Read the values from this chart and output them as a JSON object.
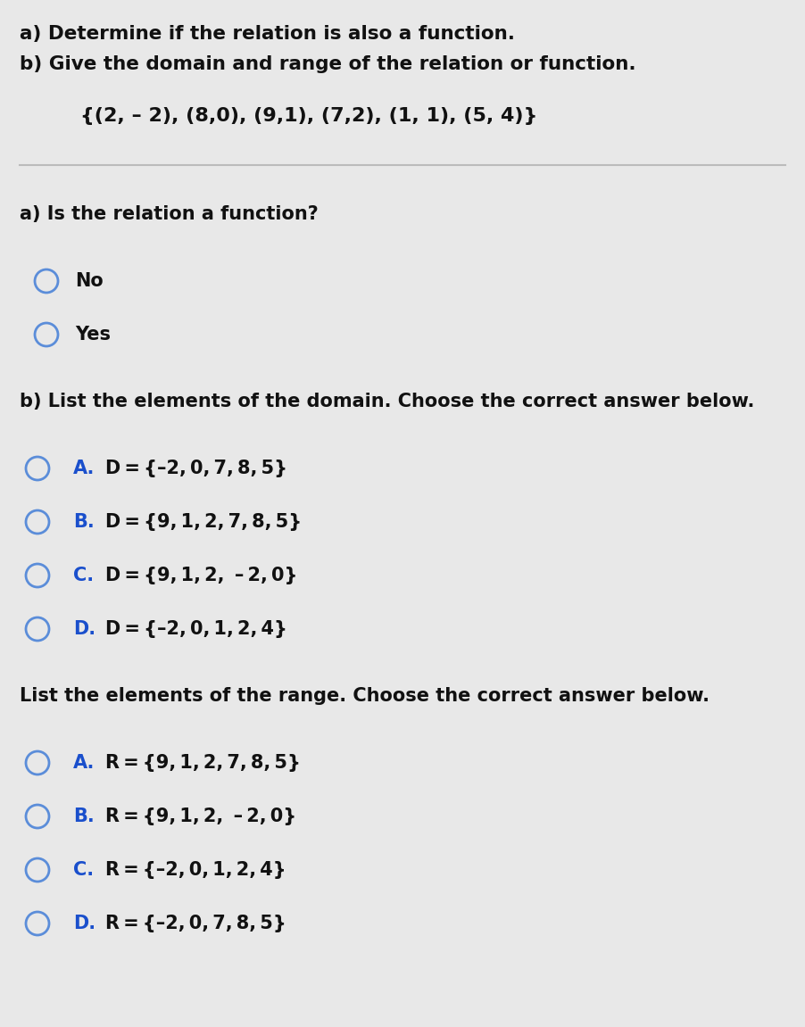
{
  "bg_color": "#e8e8e8",
  "title_line1": "a) Determine if the relation is also a function.",
  "title_line2": "b) Give the domain and range of the relation or function.",
  "set_notation": "{(2, – 2), (8,0), (9,1), (7,2), (1, 1), (5, 4)}",
  "section_a_label": "a) Is the relation a function?",
  "radio_a_options": [
    "No",
    "Yes"
  ],
  "section_b_domain_label": "b) List the elements of the domain. Choose the correct answer below.",
  "domain_options": [
    [
      "A.",
      "D = {–2, 0, 7, 8, 5}"
    ],
    [
      "B.",
      "D = {9, 1, 2, 7, 8, 5}"
    ],
    [
      "C.",
      "D = {9, 1, 2,  – 2, 0}"
    ],
    [
      "D.",
      "D = {–2, 0, 1, 2, 4}"
    ]
  ],
  "section_b_range_label": "List the elements of the range. Choose the correct answer below.",
  "range_options": [
    [
      "A.",
      "R = {9, 1, 2, 7, 8, 5}"
    ],
    [
      "B.",
      "R = {9, 1, 2,  – 2, 0}"
    ],
    [
      "C.",
      "R = {–2, 0, 1, 2, 4}"
    ],
    [
      "D.",
      "R = {–2, 0, 7, 8, 5}"
    ]
  ],
  "circle_color": "#5b8dd9",
  "text_color_black": "#111111",
  "text_color_blue": "#1a4fcc",
  "line_color": "#bbbbbb",
  "header_fontsize": 15.5,
  "set_fontsize": 16,
  "body_fontsize": 15,
  "option_fontsize": 15
}
